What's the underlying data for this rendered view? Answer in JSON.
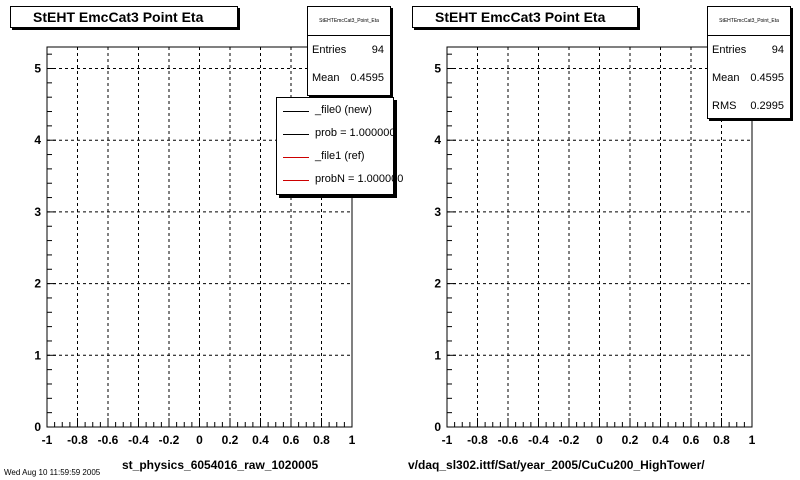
{
  "chart_data": [
    {
      "type": "histogram",
      "title": "StEHT EmcCat3 Point Eta",
      "xlabel": "st_physics_6054016_raw_1020005",
      "xlim": [
        -1,
        1
      ],
      "ylim": [
        0,
        5.3
      ],
      "grid": true,
      "x_ticks": [
        "-1",
        "-0.8",
        "-0.6",
        "-0.4",
        "-0.2",
        "0",
        "0.2",
        "0.4",
        "0.6",
        "0.8",
        "1"
      ],
      "y_ticks": [
        "0",
        "1",
        "2",
        "3",
        "4",
        "5"
      ],
      "stats": {
        "header": "StEHTEmcCat3_Point_Eta",
        "entries_label": "Entries",
        "entries": "94",
        "mean_label": "Mean",
        "mean": "0.4595"
      },
      "legend": {
        "position": "top-right",
        "entries": [
          {
            "label": "_file0 (new)",
            "color": "#000000"
          },
          {
            "label": "prob = 1.000000",
            "color": "#000000"
          },
          {
            "label": "_file1 (ref)",
            "color": "#cc0000"
          },
          {
            "label": "probN = 1.000000",
            "color": "#cc0000"
          }
        ]
      },
      "series": [
        {
          "name": "_file0 (new)",
          "color": "#000000",
          "bins": 100,
          "range": [
            -1,
            1
          ],
          "values": []
        },
        {
          "name": "_file1 (ref)",
          "color": "#cc0000",
          "bins": 100,
          "range": [
            -1,
            1
          ],
          "values": []
        }
      ]
    },
    {
      "type": "histogram",
      "title": "StEHT EmcCat3 Point Eta",
      "xlabel": "v/daq_sl302.ittf/Sat/year_2005/CuCu200_HighTower/",
      "xlim": [
        -1,
        1
      ],
      "ylim": [
        0,
        5.3
      ],
      "grid": true,
      "x_ticks": [
        "-1",
        "-0.8",
        "-0.6",
        "-0.4",
        "-0.2",
        "0",
        "0.2",
        "0.4",
        "0.6",
        "0.8",
        "1"
      ],
      "y_ticks": [
        "0",
        "1",
        "2",
        "3",
        "4",
        "5"
      ],
      "stats": {
        "header": "StEHTEmcCat3_Point_Eta",
        "entries_label": "Entries",
        "entries": "94",
        "mean_label": "Mean",
        "mean": "0.4595",
        "rms_label": "RMS",
        "rms": "0.2995"
      },
      "series": [
        {
          "name": "",
          "color": "#cc0000",
          "bins": 100,
          "range": [
            -1,
            1
          ],
          "values": []
        }
      ]
    }
  ],
  "bottom_note": "Wed Aug 10 11:59:59 2005"
}
